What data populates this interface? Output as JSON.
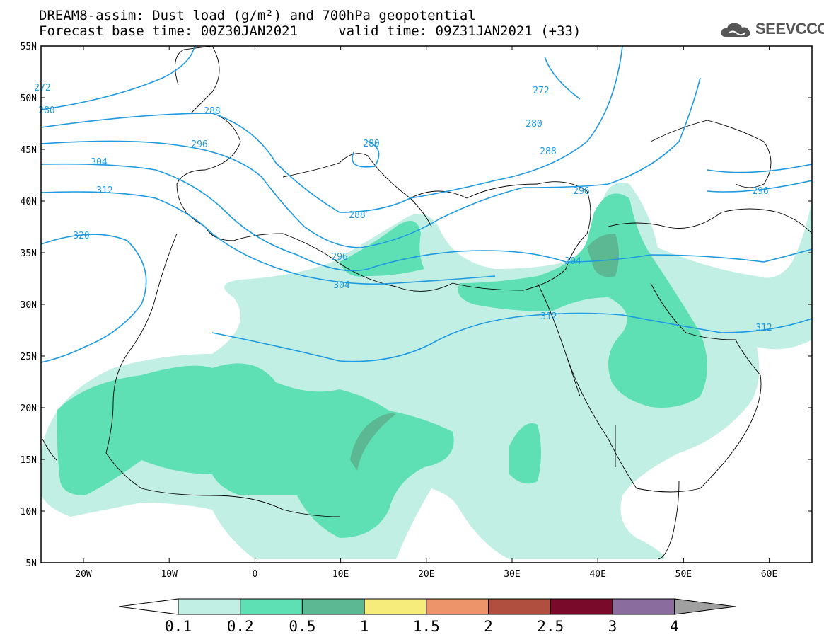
{
  "header": {
    "title_line1": "DREAM8-assim: Dust load (g/m²) and 700hPa geopotential",
    "title_line2": "Forecast base time: 00Z30JAN2021     valid time: 09Z31JAN2021 (+33)",
    "logo_text": "SEEVCCC"
  },
  "map": {
    "lat_labels": [
      "55N",
      "50N",
      "45N",
      "40N",
      "35N",
      "30N",
      "25N",
      "20N",
      "15N",
      "10N",
      "5N"
    ],
    "lon_labels": [
      "20W",
      "10W",
      "0",
      "10E",
      "20E",
      "30E",
      "40E",
      "50E",
      "60E"
    ]
  },
  "contours": {
    "labels": [
      "272",
      "272",
      "280",
      "280",
      "288",
      "288",
      "288",
      "296",
      "296",
      "296",
      "296",
      "304",
      "304",
      "304",
      "312",
      "312",
      "312",
      "320",
      "280"
    ]
  },
  "colorbar": {
    "tick_labels": [
      "0.1",
      "0.2",
      "0.5",
      "1",
      "1.5",
      "2",
      "2.5",
      "3",
      "4"
    ],
    "colors": [
      "#ffffff",
      "#c2efe4",
      "#5fe0b4",
      "#5cb892",
      "#f6ec7c",
      "#ee946a",
      "#b04e40",
      "#7a0a2a",
      "#8a6c9e",
      "#a0a0a0"
    ]
  }
}
